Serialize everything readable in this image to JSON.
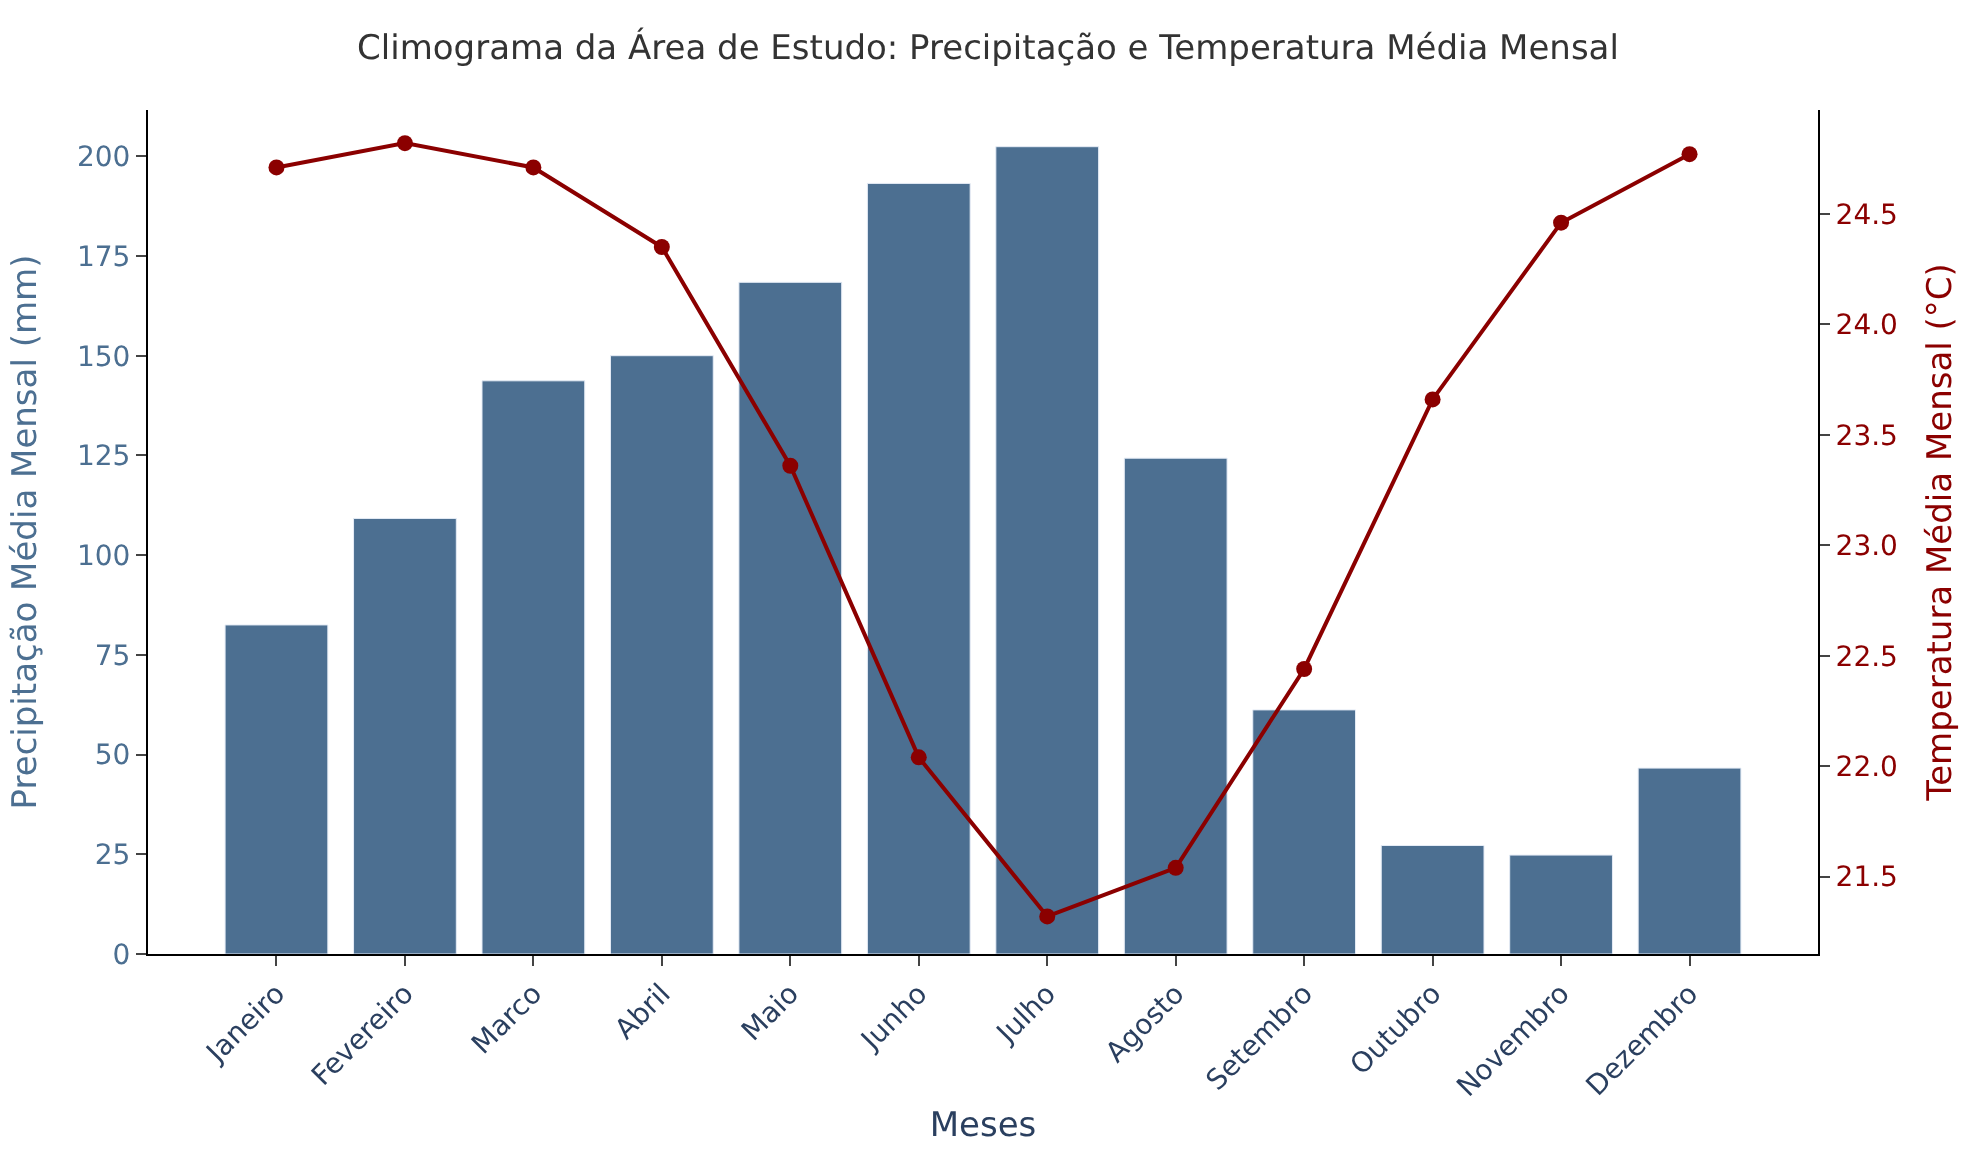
{
  "chart_data": {
    "type": "bar",
    "title": "Climograma da Área de Estudo: Precipitação e Temperatura Média Mensal",
    "xlabel": "Meses",
    "ylabel": "Precipitação Média Mensal (mm)",
    "y2label": "Temperatura Média Mensal (°C)",
    "categories": [
      "Janeiro",
      "Fevereiro",
      "Marco",
      "Abril",
      "Maio",
      "Junho",
      "Julho",
      "Agosto",
      "Setembro",
      "Outubro",
      "Novembro",
      "Dezembro"
    ],
    "series": [
      {
        "color": "#4c6f91",
        "values": [
          82.5,
          109.2,
          143.7,
          150,
          168.4,
          193.2,
          202.4,
          124.3,
          61.2,
          27.2,
          24.8,
          46.6
        ]
      },
      {
        "type": "line",
        "axis": "y2",
        "color": "#8b0000",
        "marker": "circle",
        "line_style": "solid",
        "values": [
          24.71,
          24.82,
          24.71,
          24.35,
          23.36,
          22.04,
          21.32,
          21.54,
          22.44,
          23.66,
          24.46,
          24.77
        ]
      }
    ],
    "ylim": [
      0,
      211.6
    ],
    "yticks": [
      0,
      25,
      50,
      75,
      100,
      125,
      150,
      175,
      200
    ],
    "y2lim": [
      21.15,
      24.97
    ],
    "y2ticks": [
      21.5,
      {
        "value": 22,
        "label": "22.0"
      },
      22.5,
      {
        "value": 23,
        "label": "23.0"
      },
      23.5,
      {
        "value": 24,
        "label": "24.0"
      },
      24.5
    ],
    "legend": false
  }
}
